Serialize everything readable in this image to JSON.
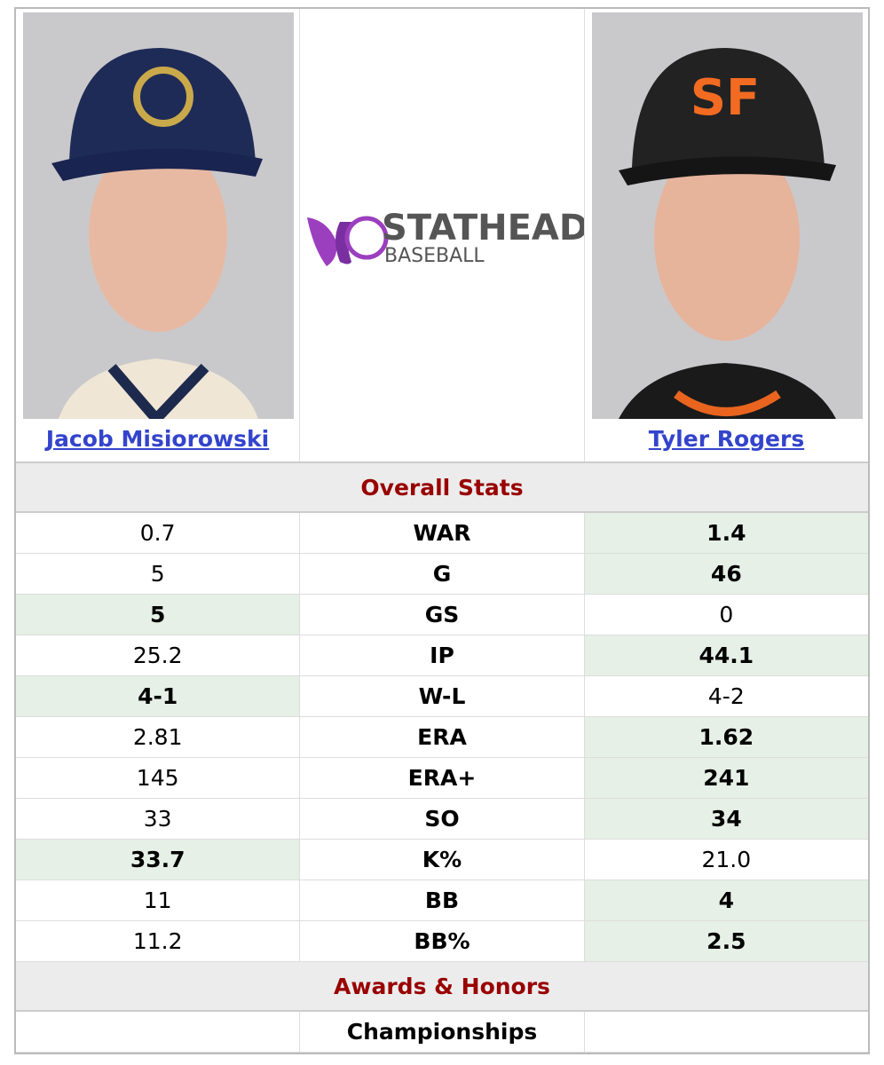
{
  "players": [
    {
      "name": "Jacob Misiorowski"
    },
    {
      "name": "Tyler Rogers"
    }
  ],
  "logo": {
    "line1": "STATHEAD",
    "line2": "BASEBALL"
  },
  "sections": [
    {
      "title": "Overall Stats",
      "rows": [
        {
          "left": "0.7",
          "stat": "WAR",
          "right": "1.4",
          "highlight": "right"
        },
        {
          "left": "5",
          "stat": "G",
          "right": "46",
          "highlight": "right"
        },
        {
          "left": "5",
          "stat": "GS",
          "right": "0",
          "highlight": "left"
        },
        {
          "left": "25.2",
          "stat": "IP",
          "right": "44.1",
          "highlight": "right"
        },
        {
          "left": "4-1",
          "stat": "W-L",
          "right": "4-2",
          "highlight": "left"
        },
        {
          "left": "2.81",
          "stat": "ERA",
          "right": "1.62",
          "highlight": "right"
        },
        {
          "left": "145",
          "stat": "ERA+",
          "right": "241",
          "highlight": "right"
        },
        {
          "left": "33",
          "stat": "SO",
          "right": "34",
          "highlight": "right"
        },
        {
          "left": "33.7",
          "stat": "K%",
          "right": "21.0",
          "highlight": "left"
        },
        {
          "left": "11",
          "stat": "BB",
          "right": "4",
          "highlight": "right"
        },
        {
          "left": "11.2",
          "stat": "BB%",
          "right": "2.5",
          "highlight": "right"
        }
      ]
    },
    {
      "title": "Awards & Honors",
      "rows": [
        {
          "left": null,
          "stat": "Championships",
          "right": null,
          "highlight": null
        }
      ]
    }
  ]
}
